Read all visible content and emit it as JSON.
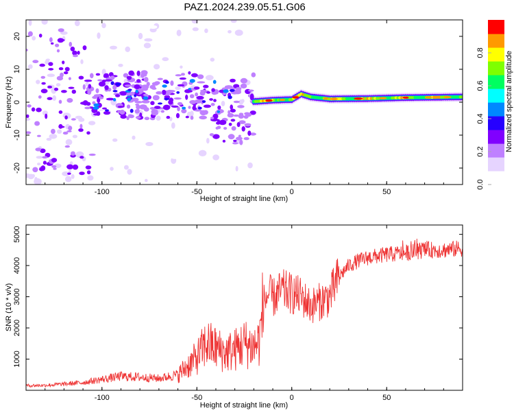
{
  "title": "PAZ1.2024.239.05.51.G06",
  "colors": {
    "snr_line": "#ee3333",
    "colormap": [
      "#ffffff",
      "#e6d4ff",
      "#bf80ff",
      "#8000ff",
      "#2600ff",
      "#0088ff",
      "#00ffff",
      "#00ff60",
      "#7fff00",
      "#ffff00",
      "#ff9900",
      "#ff0000",
      "#ff0080"
    ]
  },
  "chart_data": [
    {
      "type": "heatmap",
      "title": "PAZ1.2024.239.05.51.G06",
      "xlabel": "Height of straight line (km)",
      "ylabel": "Frequency (Hz)",
      "xlim": [
        -140,
        90
      ],
      "ylim": [
        -25,
        25
      ],
      "x_ticks": [
        "-100",
        "-50",
        "0",
        "50"
      ],
      "y_ticks": [
        "-20",
        "-10",
        "0",
        "10",
        "20"
      ],
      "colorbar": {
        "label": "Normalized spectral amplitude",
        "range": [
          0.0,
          1.0
        ],
        "ticks": [
          "0.0",
          "0.2",
          "0.4",
          "0.6",
          "0.8"
        ]
      },
      "ridge": {
        "description_points": [
          [
            -20,
            0.2
          ],
          [
            -10,
            0.6
          ],
          [
            0,
            0.8
          ],
          [
            5,
            2.5
          ],
          [
            10,
            1.6
          ],
          [
            20,
            1.0
          ],
          [
            40,
            1.1
          ],
          [
            60,
            1.4
          ],
          [
            90,
            1.6
          ]
        ]
      }
    },
    {
      "type": "line",
      "xlabel": "Height of straight line (km)",
      "ylabel": "SNR (10 * v/v)",
      "xlim": [
        -140,
        90
      ],
      "ylim": [
        0,
        5300
      ],
      "x_ticks": [
        "-100",
        "-50",
        "0",
        "50"
      ],
      "y_ticks": [
        "1000",
        "2000",
        "3000",
        "4000",
        "5000"
      ],
      "grid": false,
      "series": [
        {
          "x": [
            -140,
            -130,
            -120,
            -110,
            -100,
            -90,
            -80,
            -70,
            -60,
            -50,
            -45,
            -40,
            -35,
            -30,
            -25,
            -20,
            -17,
            -15,
            -12,
            -10,
            -5,
            0,
            5,
            10,
            15,
            20,
            25,
            30,
            35,
            40,
            50,
            60,
            70,
            80,
            90
          ],
          "values": [
            150,
            160,
            200,
            250,
            350,
            450,
            420,
            380,
            500,
            1050,
            1500,
            1350,
            1200,
            1300,
            1500,
            1400,
            1600,
            2800,
            3100,
            2950,
            3200,
            3100,
            3000,
            2700,
            2850,
            3000,
            3650,
            4000,
            4150,
            4250,
            4350,
            4400,
            4500,
            4500,
            4550
          ]
        }
      ]
    }
  ]
}
